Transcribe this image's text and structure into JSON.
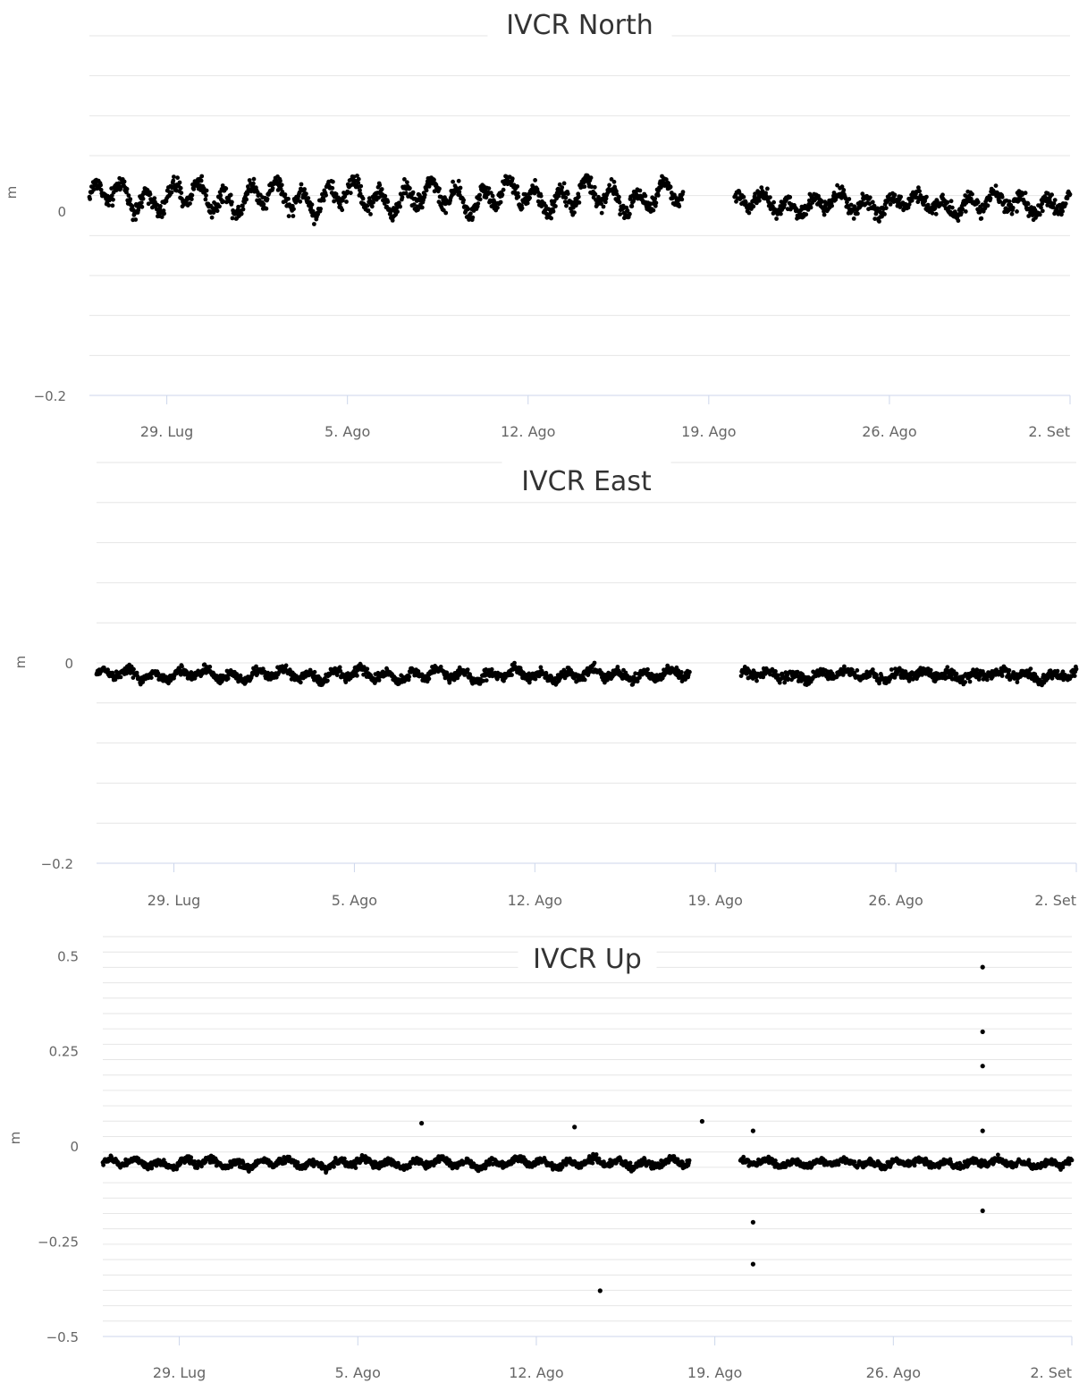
{
  "chart_data": [
    {
      "type": "scatter",
      "title": "IVCR North",
      "ylabel": "m",
      "ylim": [
        -0.2,
        0.19
      ],
      "yticks": [
        {
          "value": 0,
          "label": "0"
        },
        {
          "value": -0.2,
          "label": "-0.2"
        }
      ],
      "x_ticks": [
        {
          "date": "2019-07-29",
          "label": "29. Lug"
        },
        {
          "date": "2019-08-05",
          "label": "5. Ago"
        },
        {
          "date": "2019-08-12",
          "label": "12. Ago"
        },
        {
          "date": "2019-08-19",
          "label": "19. Ago"
        },
        {
          "date": "2019-08-26",
          "label": "26. Ago"
        },
        {
          "date": "2019-09-02",
          "label": "2. Set"
        }
      ],
      "x_range": [
        "2019-07-26",
        "2019-09-02"
      ],
      "gridlines": true,
      "series": [
        {
          "segments": [
            {
              "start": "2019-07-26",
              "end": "2019-08-18",
              "mean": 0.015,
              "spread": 0.02,
              "wave_amp": 0.012
            },
            {
              "start": "2019-08-20",
              "end": "2019-09-02",
              "mean": 0.008,
              "spread": 0.018,
              "wave_amp": 0.008
            }
          ]
        }
      ]
    },
    {
      "type": "scatter",
      "title": "IVCR East",
      "ylabel": "m",
      "ylim": [
        -0.2,
        0.2
      ],
      "yticks": [
        {
          "value": 0,
          "label": "0"
        },
        {
          "value": -0.2,
          "label": "-0.2"
        }
      ],
      "x_ticks": [
        {
          "date": "2019-07-29",
          "label": "29. Lug"
        },
        {
          "date": "2019-08-05",
          "label": "5. Ago"
        },
        {
          "date": "2019-08-12",
          "label": "12. Ago"
        },
        {
          "date": "2019-08-19",
          "label": "19. Ago"
        },
        {
          "date": "2019-08-26",
          "label": "26. Ago"
        },
        {
          "date": "2019-09-02",
          "label": "2. Set"
        }
      ],
      "x_range": [
        "2019-07-26",
        "2019-09-02"
      ],
      "gridlines": true,
      "series": [
        {
          "segments": [
            {
              "start": "2019-07-26",
              "end": "2019-08-18",
              "mean": -0.012,
              "spread": 0.01,
              "wave_amp": 0.004
            },
            {
              "start": "2019-08-20",
              "end": "2019-09-02",
              "mean": -0.012,
              "spread": 0.011,
              "wave_amp": 0.003
            }
          ]
        }
      ]
    },
    {
      "type": "scatter",
      "title": "IVCR Up",
      "ylabel": "m",
      "ylim": [
        -0.5,
        0.55
      ],
      "yticks": [
        {
          "value": 0.5,
          "label": "0.5"
        },
        {
          "value": 0.25,
          "label": "0.25"
        },
        {
          "value": 0,
          "label": "0"
        },
        {
          "value": -0.25,
          "label": "-0.25"
        },
        {
          "value": -0.5,
          "label": "-0.5"
        }
      ],
      "x_ticks": [
        {
          "date": "2019-07-29",
          "label": "29. Lug"
        },
        {
          "date": "2019-08-05",
          "label": "5. Ago"
        },
        {
          "date": "2019-08-12",
          "label": "12. Ago"
        },
        {
          "date": "2019-08-19",
          "label": "19. Ago"
        },
        {
          "date": "2019-08-26",
          "label": "26. Ago"
        },
        {
          "date": "2019-09-02",
          "label": "2. Set"
        }
      ],
      "x_range": [
        "2019-07-26",
        "2019-09-02"
      ],
      "gridlines": true,
      "series": [
        {
          "segments": [
            {
              "start": "2019-07-26",
              "end": "2019-08-18",
              "mean": -0.045,
              "spread": 0.02,
              "wave_amp": 0.008
            },
            {
              "start": "2019-08-20",
              "end": "2019-09-02",
              "mean": -0.045,
              "spread": 0.02,
              "wave_amp": 0.006
            }
          ],
          "outliers": [
            {
              "x": "2019-08-07",
              "y": 0.06
            },
            {
              "x": "2019-08-13",
              "y": 0.05
            },
            {
              "x": "2019-08-14",
              "y": -0.38
            },
            {
              "x": "2019-08-18",
              "y": 0.065
            },
            {
              "x": "2019-08-20",
              "y": 0.04
            },
            {
              "x": "2019-08-20",
              "y": -0.2
            },
            {
              "x": "2019-08-20",
              "y": -0.31
            },
            {
              "x": "2019-08-29",
              "y": 0.47
            },
            {
              "x": "2019-08-29",
              "y": 0.3
            },
            {
              "x": "2019-08-29",
              "y": 0.21
            },
            {
              "x": "2019-08-29",
              "y": 0.04
            },
            {
              "x": "2019-08-29",
              "y": -0.17
            }
          ]
        }
      ]
    }
  ]
}
